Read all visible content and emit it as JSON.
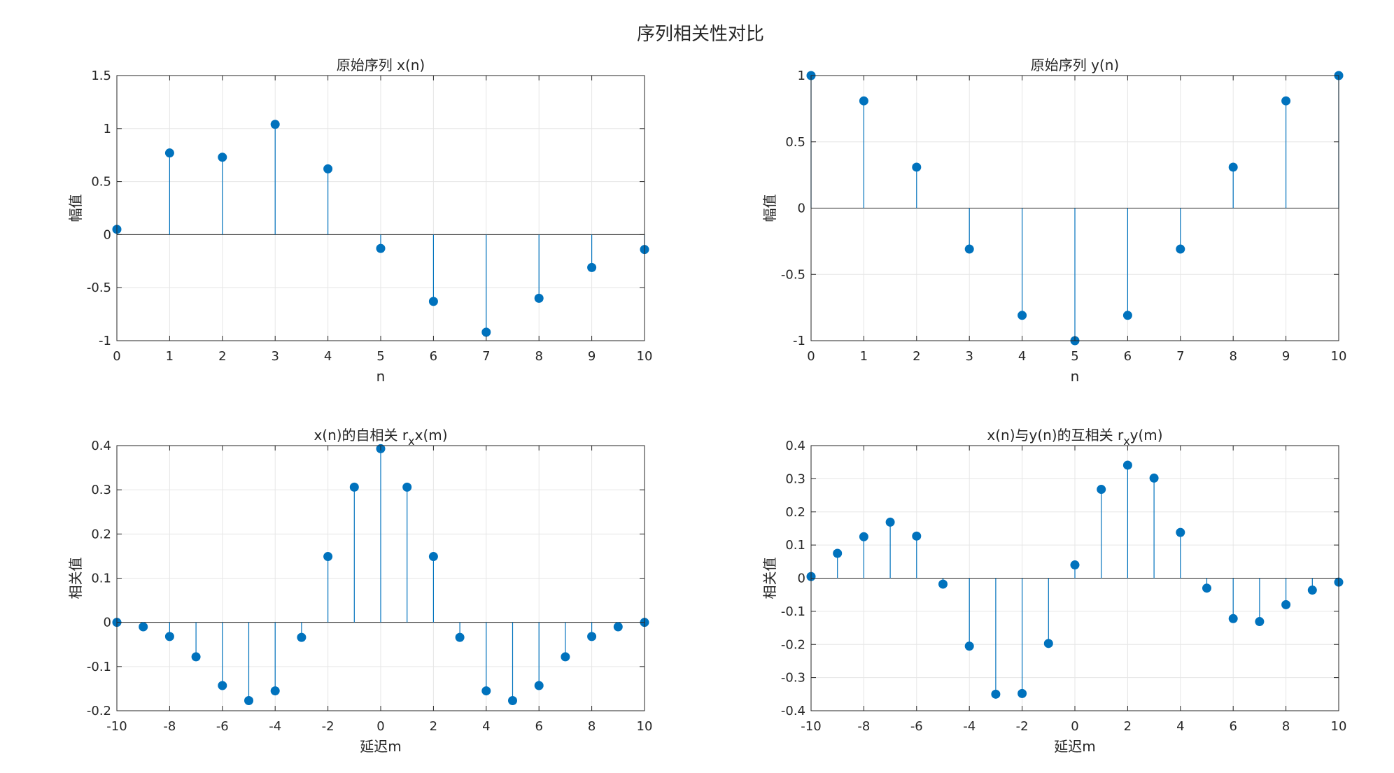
{
  "figure": {
    "suptitle": "序列相关性对比",
    "colors": {
      "stem": "#0072BD",
      "grid": "#e6e6e6",
      "axis": "#262626",
      "zero_line": "#262626"
    }
  },
  "chart_data": [
    {
      "type": "stem",
      "title": "原始序列 x(n)",
      "xlabel": "n",
      "ylabel": "幅值",
      "xlim": [
        0,
        10
      ],
      "ylim": [
        -1,
        1.5
      ],
      "xticks": [
        "0",
        "1",
        "2",
        "3",
        "4",
        "5",
        "6",
        "7",
        "8",
        "9",
        "10"
      ],
      "yticks": [
        "-1",
        "-0.5",
        "0",
        "0.5",
        "1",
        "1.5"
      ],
      "grid": true,
      "x": [
        0,
        1,
        2,
        3,
        4,
        5,
        6,
        7,
        8,
        9,
        10
      ],
      "y": [
        0.05,
        0.77,
        0.73,
        1.04,
        0.62,
        -0.13,
        -0.63,
        -0.92,
        -0.6,
        -0.31,
        -0.14
      ]
    },
    {
      "type": "stem",
      "title": "原始序列 y(n)",
      "xlabel": "n",
      "ylabel": "幅值",
      "xlim": [
        0,
        10
      ],
      "ylim": [
        -1,
        1
      ],
      "xticks": [
        "0",
        "1",
        "2",
        "3",
        "4",
        "5",
        "6",
        "7",
        "8",
        "9",
        "10"
      ],
      "yticks": [
        "-1",
        "-0.5",
        "0",
        "0.5",
        "1"
      ],
      "grid": true,
      "x": [
        0,
        1,
        2,
        3,
        4,
        5,
        6,
        7,
        8,
        9,
        10
      ],
      "y": [
        1,
        0.809,
        0.309,
        -0.309,
        -0.809,
        -1,
        -0.809,
        -0.309,
        0.309,
        0.809,
        1
      ]
    },
    {
      "type": "stem",
      "title": "x(n)的自相关 r",
      "title_sub": "x",
      "title_tail": "x(m)",
      "xlabel": "延迟m",
      "ylabel": "相关值",
      "xlim": [
        -10,
        10
      ],
      "ylim": [
        -0.2,
        0.4
      ],
      "xticks": [
        "-10",
        "-8",
        "-6",
        "-4",
        "-2",
        "0",
        "2",
        "4",
        "6",
        "8",
        "10"
      ],
      "yticks": [
        "-0.2",
        "-0.1",
        "0",
        "0.1",
        "0.2",
        "0.3",
        "0.4"
      ],
      "grid": true,
      "x": [
        -10,
        -9,
        -8,
        -7,
        -6,
        -5,
        -4,
        -3,
        -2,
        -1,
        0,
        1,
        2,
        3,
        4,
        5,
        6,
        7,
        8,
        9,
        10
      ],
      "y": [
        0.0,
        -0.01,
        -0.032,
        -0.078,
        -0.143,
        -0.177,
        -0.155,
        -0.034,
        0.149,
        0.306,
        0.393,
        0.306,
        0.149,
        -0.034,
        -0.155,
        -0.177,
        -0.143,
        -0.078,
        -0.032,
        -0.01,
        0.0
      ]
    },
    {
      "type": "stem",
      "title": "x(n)与y(n)的互相关 r",
      "title_sub": "x",
      "title_tail": "y(m)",
      "xlabel": "延迟m",
      "ylabel": "相关值",
      "xlim": [
        -10,
        10
      ],
      "ylim": [
        -0.4,
        0.4
      ],
      "xticks": [
        "-10",
        "-8",
        "-6",
        "-4",
        "-2",
        "0",
        "2",
        "4",
        "6",
        "8",
        "10"
      ],
      "yticks": [
        "-0.4",
        "-0.3",
        "-0.2",
        "-0.1",
        "0",
        "0.1",
        "0.2",
        "0.3",
        "0.4"
      ],
      "grid": true,
      "x": [
        -10,
        -9,
        -8,
        -7,
        -6,
        -5,
        -4,
        -3,
        -2,
        -1,
        0,
        1,
        2,
        3,
        4,
        5,
        6,
        7,
        8,
        9,
        10
      ],
      "y": [
        0.005,
        0.075,
        0.125,
        0.169,
        0.127,
        -0.018,
        -0.205,
        -0.35,
        -0.348,
        -0.197,
        0.04,
        0.268,
        0.341,
        0.302,
        0.138,
        -0.03,
        -0.122,
        -0.131,
        -0.08,
        -0.036,
        -0.012
      ]
    }
  ]
}
